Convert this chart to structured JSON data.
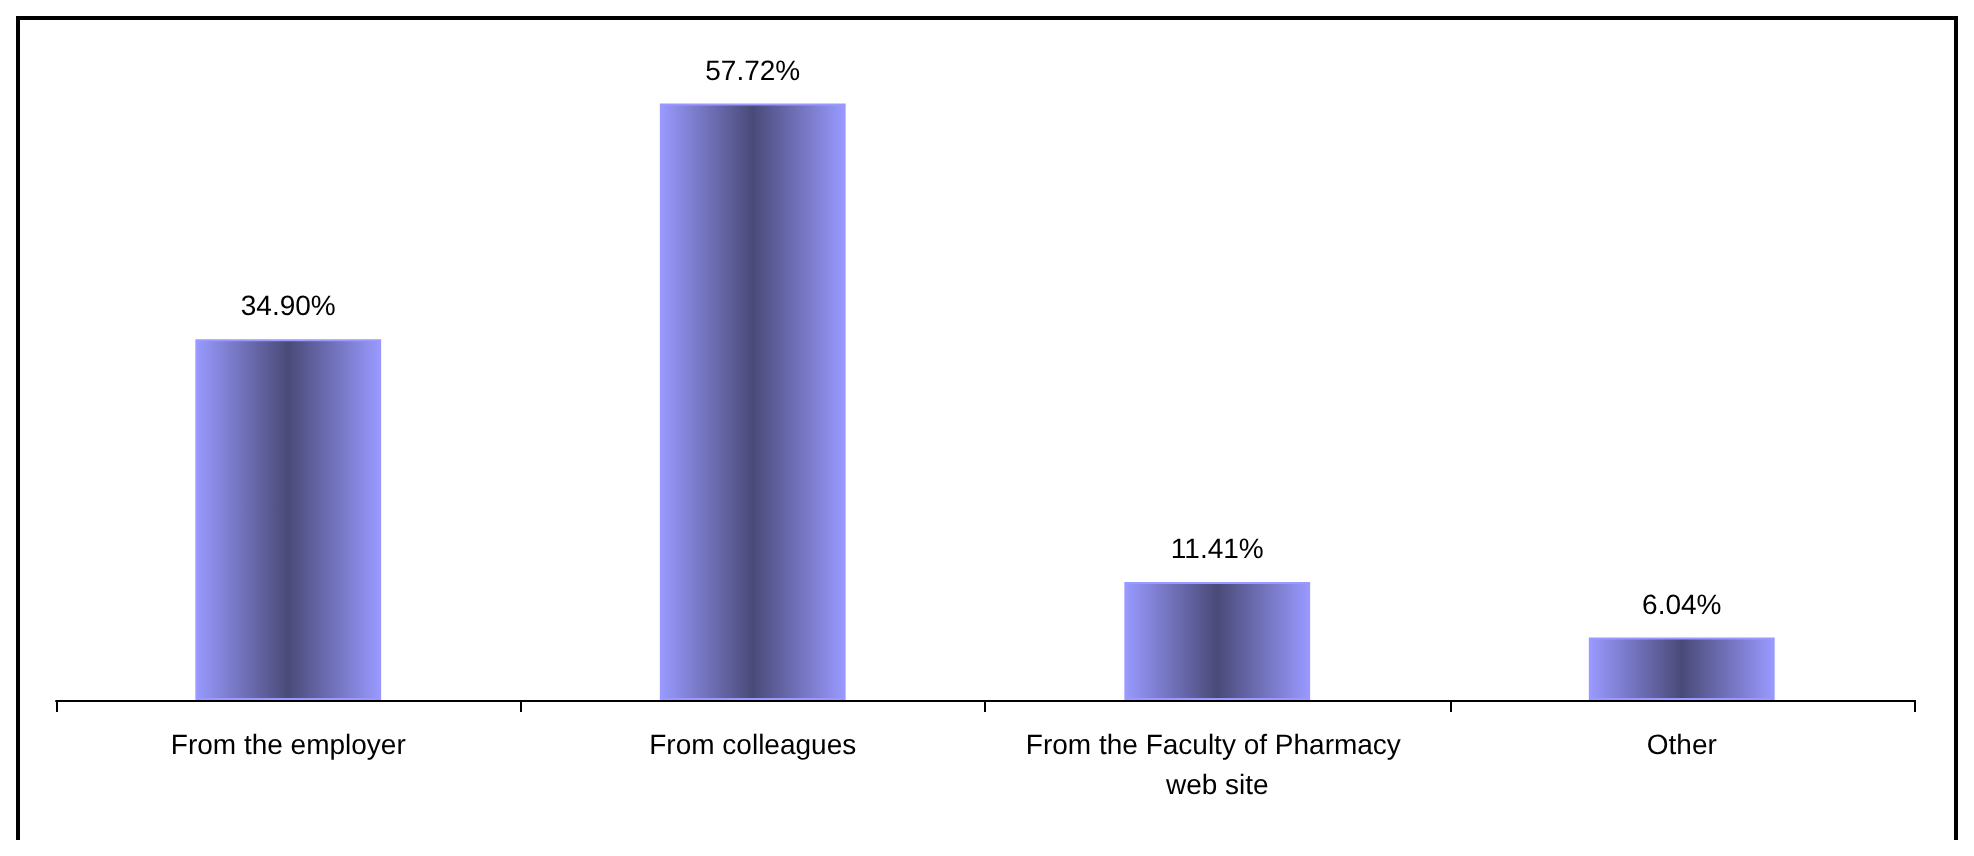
{
  "chart_data": {
    "type": "bar",
    "categories": [
      "From the employer",
      "From colleagues",
      "From the Faculty of Pharmacy web site",
      "Other"
    ],
    "values": [
      34.9,
      57.72,
      11.41,
      6.04
    ],
    "value_labels": [
      "34.90%",
      "57.72%",
      "11.41%",
      "6.04%"
    ],
    "color": "#9999ff",
    "grid": false
  }
}
